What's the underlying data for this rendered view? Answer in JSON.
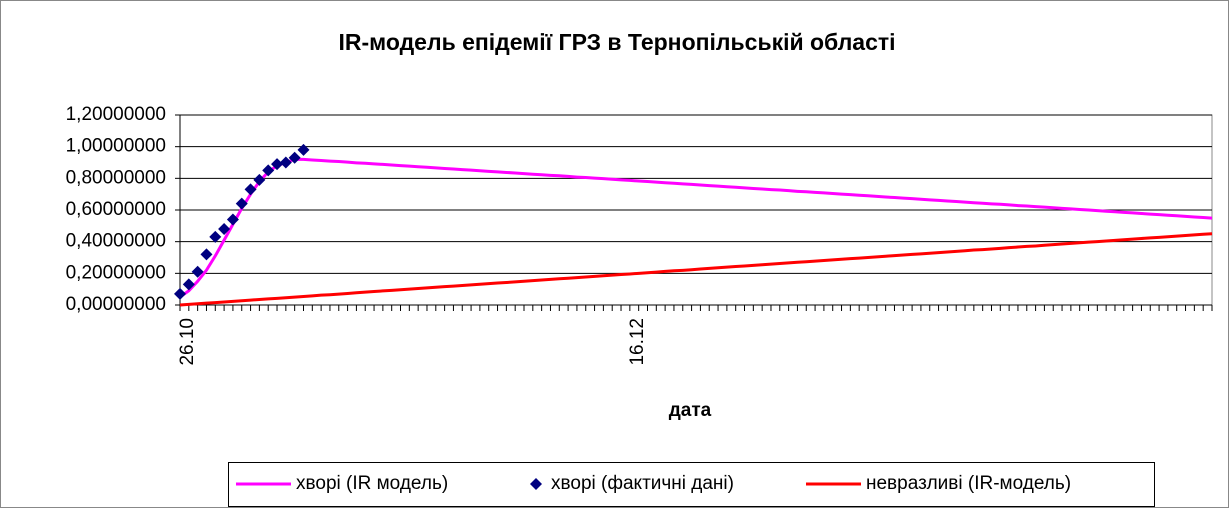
{
  "chart_data": {
    "type": "line",
    "title": "IR-модель епідемії ГРЗ в Тернопільській області",
    "x_label": "дата",
    "categories": [
      "26.10",
      null,
      null,
      null,
      null,
      null,
      null,
      null,
      null,
      null,
      null,
      null,
      null,
      null,
      null,
      null,
      null,
      null,
      null,
      null,
      null,
      null,
      null,
      null,
      null,
      null,
      null,
      null,
      null,
      null,
      null,
      null,
      null,
      null,
      null,
      null,
      null,
      null,
      null,
      null,
      null,
      null,
      null,
      null,
      null,
      null,
      null,
      null,
      null,
      null,
      null,
      "16.12",
      null,
      null,
      null,
      null,
      null,
      null,
      null,
      null,
      null,
      null,
      null,
      null,
      null,
      null,
      null,
      null,
      null,
      null,
      null,
      null,
      null,
      null,
      null,
      null,
      null,
      null,
      null,
      null,
      null,
      null,
      null,
      null,
      null,
      null,
      null,
      null,
      null,
      null,
      null,
      null,
      null,
      null,
      null,
      null,
      null,
      null,
      null,
      null,
      null,
      null,
      null,
      null,
      null,
      null,
      null,
      null,
      null,
      null,
      null,
      null,
      null,
      null,
      null,
      null,
      null,
      null
    ],
    "series": [
      {
        "name": "хворі (IR модель)",
        "type": "line",
        "color": "#ff00ff",
        "values": [
          0.05,
          0.09,
          0.15,
          0.22,
          0.31,
          0.41,
          0.51,
          0.61,
          0.7,
          0.78,
          0.84,
          0.88,
          0.9,
          0.92,
          0.92,
          0.916,
          0.913,
          0.909,
          0.906,
          0.902,
          0.898,
          0.895,
          0.891,
          0.888,
          0.884,
          0.88,
          0.877,
          0.873,
          0.87,
          0.866,
          0.862,
          0.859,
          0.855,
          0.852,
          0.848,
          0.844,
          0.841,
          0.837,
          0.834,
          0.83,
          0.826,
          0.823,
          0.819,
          0.816,
          0.812,
          0.808,
          0.805,
          0.801,
          0.798,
          0.794,
          0.79,
          0.787,
          0.783,
          0.78,
          0.776,
          0.772,
          0.769,
          0.765,
          0.762,
          0.758,
          0.754,
          0.751,
          0.747,
          0.744,
          0.74,
          0.736,
          0.733,
          0.729,
          0.726,
          0.722,
          0.718,
          0.715,
          0.711,
          0.708,
          0.704,
          0.7,
          0.697,
          0.693,
          0.69,
          0.686,
          0.682,
          0.679,
          0.675,
          0.672,
          0.668,
          0.664,
          0.661,
          0.657,
          0.654,
          0.65,
          0.646,
          0.643,
          0.639,
          0.636,
          0.632,
          0.628,
          0.625,
          0.621,
          0.618,
          0.614,
          0.61,
          0.607,
          0.603,
          0.6,
          0.596,
          0.592,
          0.589,
          0.585,
          0.582,
          0.578,
          0.574,
          0.571,
          0.567,
          0.564,
          0.56,
          0.556,
          0.553,
          0.549
        ]
      },
      {
        "name": "хворі (фактичні дані)",
        "type": "scatter",
        "color": "#000080",
        "values": [
          0.07,
          0.13,
          0.21,
          0.32,
          0.43,
          0.48,
          0.54,
          0.64,
          0.73,
          0.79,
          0.85,
          0.89,
          0.9,
          0.93,
          0.98,
          null,
          null,
          null,
          null,
          null,
          null,
          null,
          null,
          null,
          null,
          null,
          null,
          null,
          null,
          null,
          null,
          null,
          null,
          null,
          null,
          null,
          null,
          null,
          null,
          null,
          null,
          null,
          null,
          null,
          null,
          null,
          null,
          null,
          null,
          null,
          null,
          null,
          null,
          null,
          null,
          null,
          null,
          null,
          null,
          null,
          null,
          null,
          null,
          null,
          null,
          null,
          null,
          null,
          null,
          null,
          null,
          null,
          null,
          null,
          null,
          null,
          null,
          null,
          null,
          null,
          null,
          null,
          null,
          null,
          null,
          null,
          null,
          null,
          null,
          null,
          null,
          null,
          null,
          null,
          null,
          null,
          null,
          null,
          null,
          null,
          null,
          null,
          null,
          null,
          null,
          null,
          null,
          null,
          null,
          null,
          null,
          null,
          null,
          null,
          null,
          null,
          null,
          null
        ]
      },
      {
        "name": "невразливі (IR-модель)",
        "type": "line",
        "color": "#ff0000",
        "values": [
          0,
          0.004,
          0.008,
          0.012,
          0.015,
          0.019,
          0.023,
          0.027,
          0.031,
          0.035,
          0.039,
          0.042,
          0.046,
          0.05,
          0.054,
          0.058,
          0.062,
          0.065,
          0.069,
          0.073,
          0.077,
          0.081,
          0.085,
          0.089,
          0.092,
          0.096,
          0.1,
          0.104,
          0.108,
          0.112,
          0.116,
          0.119,
          0.123,
          0.127,
          0.131,
          0.135,
          0.139,
          0.142,
          0.146,
          0.15,
          0.154,
          0.158,
          0.162,
          0.166,
          0.169,
          0.173,
          0.177,
          0.181,
          0.185,
          0.189,
          0.193,
          0.196,
          0.2,
          0.204,
          0.208,
          0.212,
          0.216,
          0.219,
          0.223,
          0.227,
          0.231,
          0.235,
          0.239,
          0.243,
          0.246,
          0.25,
          0.254,
          0.258,
          0.262,
          0.266,
          0.27,
          0.273,
          0.277,
          0.281,
          0.285,
          0.289,
          0.293,
          0.296,
          0.3,
          0.304,
          0.308,
          0.312,
          0.316,
          0.32,
          0.323,
          0.327,
          0.331,
          0.335,
          0.339,
          0.343,
          0.347,
          0.35,
          0.354,
          0.358,
          0.362,
          0.366,
          0.37,
          0.373,
          0.377,
          0.381,
          0.385,
          0.389,
          0.393,
          0.397,
          0.4,
          0.404,
          0.408,
          0.412,
          0.416,
          0.42,
          0.424,
          0.427,
          0.431,
          0.435,
          0.439,
          0.443,
          0.447,
          0.45
        ]
      }
    ],
    "ylim": [
      0,
      1.2
    ],
    "yticks": [
      {
        "value": 0,
        "label": "0,00000000"
      },
      {
        "value": 0.2,
        "label": "0,20000000"
      },
      {
        "value": 0.4,
        "label": "0,40000000"
      },
      {
        "value": 0.6,
        "label": "0,60000000"
      },
      {
        "value": 0.8,
        "label": "0,80000000"
      },
      {
        "value": 1.0,
        "label": "1,00000000"
      },
      {
        "value": 1.2,
        "label": "1,20000000"
      }
    ],
    "grid": true
  }
}
